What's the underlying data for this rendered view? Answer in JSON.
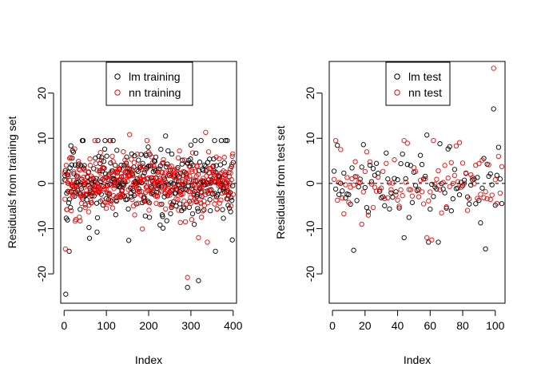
{
  "chart_data": [
    {
      "type": "scatter",
      "xlabel": "Index",
      "ylabel": "Residuals from training set",
      "xlim": [
        -8,
        408
      ],
      "ylim": [
        -26.5,
        27
      ],
      "x_ticks": [
        0,
        100,
        200,
        300,
        400
      ],
      "y_ticks": [
        -20,
        -10,
        0,
        10,
        20
      ],
      "reference_line": 0,
      "legend_position": "top-center",
      "series": [
        {
          "name": "lm training",
          "color": "#000000",
          "marker": "open-circle",
          "n": 400,
          "y_range": [
            -24.5,
            10.5
          ],
          "notable_points": [
            [
              4,
              -24.5
            ],
            [
              12,
              -15
            ],
            [
              292,
              -23
            ],
            [
              318,
              -21.5
            ],
            [
              240,
              10.5
            ],
            [
              300,
              8.5
            ],
            [
              358,
              -15
            ],
            [
              398,
              -12.5
            ]
          ]
        },
        {
          "name": "nn training",
          "color": "#ff0000",
          "marker": "open-circle",
          "n": 400,
          "y_range": [
            -21,
            11.3
          ],
          "notable_points": [
            [
              3,
              -14.5
            ],
            [
              155,
              10.8
            ],
            [
              292,
              -20.8
            ],
            [
              335,
              11.3
            ],
            [
              318,
              -12
            ],
            [
              398,
              6
            ]
          ]
        }
      ]
    },
    {
      "type": "scatter",
      "xlabel": "Index",
      "ylabel": "Residuals from test set",
      "xlim": [
        -2,
        106
      ],
      "ylim": [
        -26.5,
        27
      ],
      "x_ticks": [
        0,
        20,
        40,
        60,
        80,
        100
      ],
      "y_ticks": [
        -20,
        -10,
        0,
        10,
        20
      ],
      "reference_line": 0,
      "legend_position": "top-center",
      "series": [
        {
          "name": "lm test",
          "color": "#000000",
          "marker": "open-circle",
          "n": 104,
          "y_range": [
            -14.8,
            16.5
          ],
          "notable_points": [
            [
              99,
              16.5
            ],
            [
              94,
              -14.5
            ],
            [
              13,
              -14.8
            ],
            [
              58,
              10.7
            ],
            [
              44,
              -12
            ],
            [
              102,
              8
            ]
          ]
        },
        {
          "name": "nn test",
          "color": "#ff0000",
          "marker": "open-circle",
          "n": 104,
          "y_range": [
            -12.5,
            25.5
          ],
          "notable_points": [
            [
              99,
              25.5
            ],
            [
              61,
              -12.5
            ],
            [
              5,
              7.5
            ],
            [
              21,
              7
            ],
            [
              76,
              8.3
            ],
            [
              102,
              6
            ]
          ]
        }
      ]
    }
  ]
}
